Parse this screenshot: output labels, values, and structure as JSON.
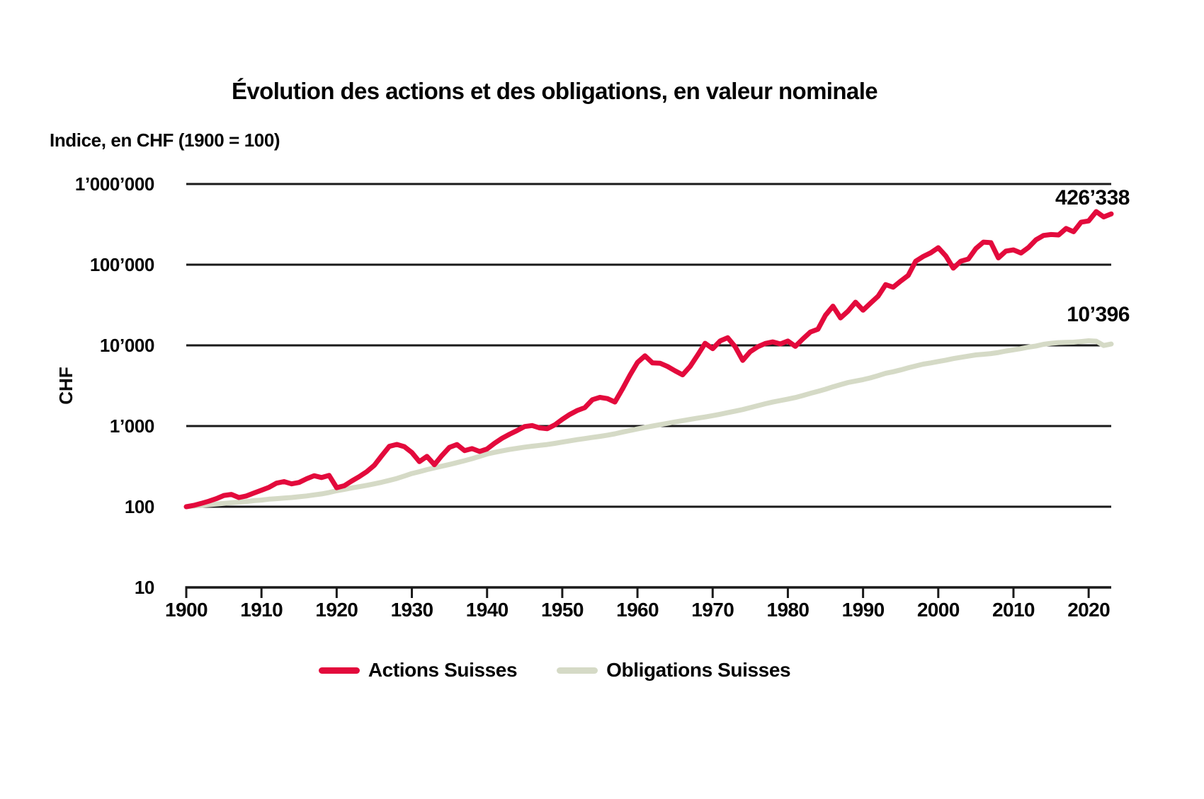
{
  "page": {
    "background": "#ffffff",
    "text_color": "#050505",
    "grid_color": "#1a1a1a"
  },
  "chart_data": {
    "type": "line",
    "title": "Évolution des actions et des obligations, en valeur nominale",
    "subtitle": "Indice, en CHF (1900 = 100)",
    "ylabel": "CHF",
    "xlabel": "",
    "y_scale": "log",
    "grid": "horizontal",
    "legend_position": "bottom",
    "x_range": [
      1900,
      2023
    ],
    "y_range": [
      10,
      1000000
    ],
    "x_ticks": [
      1900,
      1910,
      1920,
      1930,
      1940,
      1950,
      1960,
      1970,
      1980,
      1990,
      2000,
      2010,
      2020
    ],
    "y_ticks": [
      {
        "value": 1000000,
        "label": "1’000’000"
      },
      {
        "value": 100000,
        "label": "100’000"
      },
      {
        "value": 10000,
        "label": "10’000"
      },
      {
        "value": 1000,
        "label": "1’000"
      },
      {
        "value": 100,
        "label": "100"
      },
      {
        "value": 10,
        "label": "10"
      }
    ],
    "years": [
      1900,
      1901,
      1902,
      1903,
      1904,
      1905,
      1906,
      1907,
      1908,
      1909,
      1910,
      1911,
      1912,
      1913,
      1914,
      1915,
      1916,
      1917,
      1918,
      1919,
      1920,
      1921,
      1922,
      1923,
      1924,
      1925,
      1926,
      1927,
      1928,
      1929,
      1930,
      1931,
      1932,
      1933,
      1934,
      1935,
      1936,
      1937,
      1938,
      1939,
      1940,
      1941,
      1942,
      1943,
      1944,
      1945,
      1946,
      1947,
      1948,
      1949,
      1950,
      1951,
      1952,
      1953,
      1954,
      1955,
      1956,
      1957,
      1958,
      1959,
      1960,
      1961,
      1962,
      1963,
      1964,
      1965,
      1966,
      1967,
      1968,
      1969,
      1970,
      1971,
      1972,
      1973,
      1974,
      1975,
      1976,
      1977,
      1978,
      1979,
      1980,
      1981,
      1982,
      1983,
      1984,
      1985,
      1986,
      1987,
      1988,
      1989,
      1990,
      1991,
      1992,
      1993,
      1994,
      1995,
      1996,
      1997,
      1998,
      1999,
      2000,
      2001,
      2002,
      2003,
      2004,
      2005,
      2006,
      2007,
      2008,
      2009,
      2010,
      2011,
      2012,
      2013,
      2014,
      2015,
      2016,
      2017,
      2018,
      2019,
      2020,
      2021,
      2022,
      2023
    ],
    "series": [
      {
        "name": "Actions Suisses",
        "color": "#e30a3c",
        "end_label": "426’338",
        "end_value": 426338,
        "values": [
          100,
          104,
          110,
          117,
          126,
          138,
          142,
          130,
          136,
          148,
          160,
          174,
          196,
          205,
          192,
          200,
          222,
          242,
          230,
          244,
          172,
          182,
          208,
          236,
          272,
          325,
          430,
          560,
          592,
          556,
          470,
          362,
          420,
          332,
          432,
          545,
          590,
          496,
          525,
          484,
          520,
          612,
          706,
          792,
          880,
          985,
          1015,
          948,
          926,
          1032,
          1210,
          1392,
          1560,
          1690,
          2120,
          2265,
          2190,
          1985,
          2870,
          4280,
          6150,
          7420,
          6060,
          6010,
          5480,
          4830,
          4320,
          5480,
          7560,
          10600,
          9100,
          11350,
          12450,
          9600,
          6520,
          8350,
          9620,
          10550,
          11050,
          10420,
          11320,
          9720,
          12050,
          14650,
          15850,
          23600,
          30600,
          21900,
          26600,
          34300,
          27300,
          33400,
          40600,
          56600,
          52600,
          62600,
          73600,
          110500,
          126500,
          140500,
          162500,
          128500,
          90500,
          110500,
          117500,
          158500,
          190500,
          187500,
          121500,
          147500,
          152500,
          139500,
          163500,
          203500,
          230500,
          236500,
          233500,
          281500,
          256500,
          336500,
          348500,
          455000,
          391000,
          426338
        ]
      },
      {
        "name": "Obligations Suisses",
        "color": "#d5dac6",
        "end_label": "10’396",
        "end_value": 10396,
        "values": [
          100,
          102,
          104,
          106,
          108,
          110,
          112,
          114,
          116,
          119,
          121,
          124,
          126,
          128,
          130,
          133,
          136,
          140,
          144,
          150,
          158,
          164,
          171,
          177,
          184,
          192,
          201,
          212,
          224,
          240,
          258,
          272,
          288,
          303,
          318,
          334,
          352,
          372,
          394,
          420,
          450,
          472,
          492,
          512,
          530,
          548,
          562,
          576,
          590,
          610,
          632,
          655,
          678,
          700,
          722,
          745,
          770,
          800,
          840,
          880,
          920,
          960,
          1000,
          1040,
          1080,
          1125,
          1165,
          1210,
          1255,
          1295,
          1345,
          1400,
          1465,
          1530,
          1600,
          1690,
          1790,
          1890,
          1985,
          2070,
          2160,
          2255,
          2390,
          2540,
          2690,
          2860,
          3060,
          3260,
          3460,
          3610,
          3760,
          3960,
          4210,
          4510,
          4710,
          4960,
          5260,
          5560,
          5860,
          6060,
          6310,
          6560,
          6860,
          7110,
          7360,
          7610,
          7760,
          7910,
          8160,
          8510,
          8810,
          9110,
          9510,
          9810,
          10310,
          10610,
          10810,
          10910,
          10960,
          11160,
          11410,
          11260,
          9960,
          10396
        ]
      }
    ]
  }
}
